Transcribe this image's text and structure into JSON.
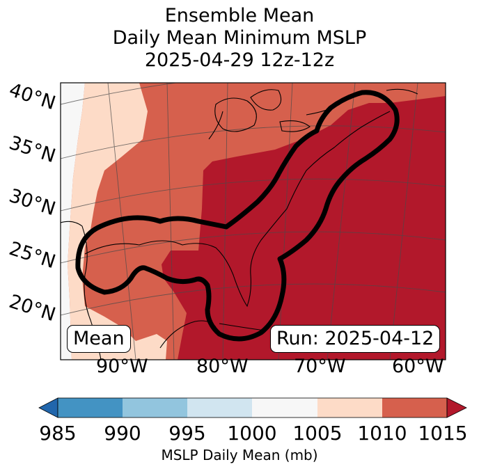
{
  "title": {
    "line1": "Ensemble Mean",
    "line2": "Daily Mean Minimum MSLP",
    "line3": "2025-04-29 12z-12z"
  },
  "map": {
    "latitude_labels": [
      "40°N",
      "35°N",
      "30°N",
      "25°N",
      "20°N"
    ],
    "longitude_labels": [
      "90°W",
      "80°W",
      "70°W",
      "60°W"
    ],
    "mean_label": "Mean",
    "run_label": "Run: 2025-04-12",
    "contour_description": "contour outline over Gulf of Mexico and US east coast",
    "regions": [
      {
        "bin": "1000-1005",
        "color": "#f7f7f7"
      },
      {
        "bin": "1005-1010",
        "color": "#fddbc7"
      },
      {
        "bin": "1010-1015",
        "color": "#d6604d"
      },
      {
        "bin": ">1015",
        "color": "#b2182b"
      }
    ]
  },
  "colorbar": {
    "label": "MSLP Daily Mean (mb)",
    "ticks": [
      "985",
      "990",
      "995",
      "1000",
      "1005",
      "1010",
      "1015"
    ],
    "colors": {
      "under": "#2166ac",
      "bins": [
        "#4393c3",
        "#92c5de",
        "#d1e5f0",
        "#f7f7f7",
        "#fddbc7",
        "#d6604d"
      ],
      "over": "#b2182b"
    }
  }
}
